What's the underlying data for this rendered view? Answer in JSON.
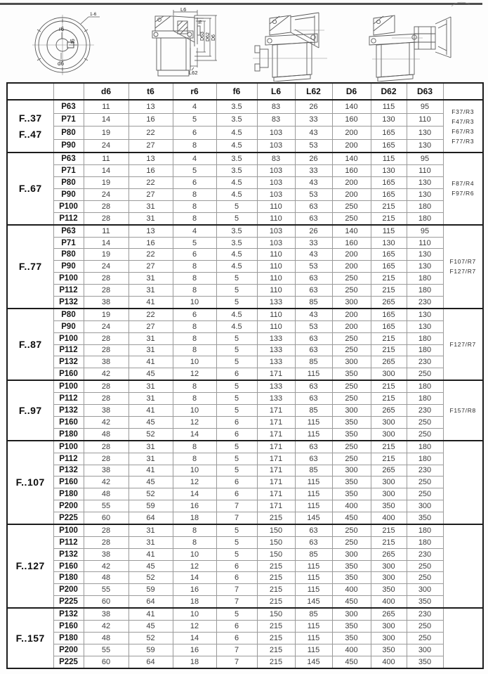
{
  "drawings": {
    "section_label": "1-6",
    "flange": {
      "r6": "r6",
      "t6": "t6",
      "d6": "d6"
    },
    "side": {
      "L6": "L6",
      "f6": "f6",
      "D63": "D63",
      "D62": "D62",
      "D6": "D6",
      "L62": "L62"
    }
  },
  "table": {
    "headers": [
      "",
      "",
      "d6",
      "t6",
      "r6",
      "f6",
      "L6",
      "L62",
      "D6",
      "D62",
      "D63",
      ""
    ],
    "groups": [
      {
        "label_lines": [
          "F..37",
          "F..47"
        ],
        "notes": [
          "F37/R3",
          "F47/R3",
          "F67/R3",
          "F77/R3"
        ],
        "rows": [
          {
            "size": "P63",
            "values": [
              "11",
              "13",
              "4",
              "3.5",
              "83",
              "26",
              "140",
              "115",
              "95"
            ]
          },
          {
            "size": "P71",
            "values": [
              "14",
              "16",
              "5",
              "3.5",
              "83",
              "33",
              "160",
              "130",
              "110"
            ]
          },
          {
            "size": "P80",
            "values": [
              "19",
              "22",
              "6",
              "4.5",
              "103",
              "43",
              "200",
              "165",
              "130"
            ]
          },
          {
            "size": "P90",
            "values": [
              "24",
              "27",
              "8",
              "4.5",
              "103",
              "53",
              "200",
              "165",
              "130"
            ]
          }
        ]
      },
      {
        "label_lines": [
          "F..67"
        ],
        "notes": [
          "F87/R4",
          "F97/R6"
        ],
        "rows": [
          {
            "size": "P63",
            "values": [
              "11",
              "13",
              "4",
              "3.5",
              "83",
              "26",
              "140",
              "115",
              "95"
            ]
          },
          {
            "size": "P71",
            "values": [
              "14",
              "16",
              "5",
              "3.5",
              "103",
              "33",
              "160",
              "130",
              "110"
            ]
          },
          {
            "size": "P80",
            "values": [
              "19",
              "22",
              "6",
              "4.5",
              "103",
              "43",
              "200",
              "165",
              "130"
            ]
          },
          {
            "size": "P90",
            "values": [
              "24",
              "27",
              "8",
              "4.5",
              "103",
              "53",
              "200",
              "165",
              "130"
            ]
          },
          {
            "size": "P100",
            "values": [
              "28",
              "31",
              "8",
              "5",
              "110",
              "63",
              "250",
              "215",
              "180"
            ]
          },
          {
            "size": "P112",
            "values": [
              "28",
              "31",
              "8",
              "5",
              "110",
              "63",
              "250",
              "215",
              "180"
            ]
          }
        ]
      },
      {
        "label_lines": [
          "F..77"
        ],
        "notes": [
          "F107/R7",
          "F127/R7"
        ],
        "rows": [
          {
            "size": "P63",
            "values": [
              "11",
              "13",
              "4",
              "3.5",
              "103",
              "26",
              "140",
              "115",
              "95"
            ]
          },
          {
            "size": "P71",
            "values": [
              "14",
              "16",
              "5",
              "3.5",
              "103",
              "33",
              "160",
              "130",
              "110"
            ]
          },
          {
            "size": "P80",
            "values": [
              "19",
              "22",
              "6",
              "4.5",
              "110",
              "43",
              "200",
              "165",
              "130"
            ]
          },
          {
            "size": "P90",
            "values": [
              "24",
              "27",
              "8",
              "4.5",
              "110",
              "53",
              "200",
              "165",
              "130"
            ]
          },
          {
            "size": "P100",
            "values": [
              "28",
              "31",
              "8",
              "5",
              "110",
              "63",
              "250",
              "215",
              "180"
            ]
          },
          {
            "size": "P112",
            "values": [
              "28",
              "31",
              "8",
              "5",
              "110",
              "63",
              "250",
              "215",
              "180"
            ]
          },
          {
            "size": "P132",
            "values": [
              "38",
              "41",
              "10",
              "5",
              "133",
              "85",
              "300",
              "265",
              "230"
            ]
          }
        ]
      },
      {
        "label_lines": [
          "F..87"
        ],
        "notes": [
          "F127/R7"
        ],
        "rows": [
          {
            "size": "P80",
            "values": [
              "19",
              "22",
              "6",
              "4.5",
              "110",
              "43",
              "200",
              "165",
              "130"
            ]
          },
          {
            "size": "P90",
            "values": [
              "24",
              "27",
              "8",
              "4.5",
              "110",
              "53",
              "200",
              "165",
              "130"
            ]
          },
          {
            "size": "P100",
            "values": [
              "28",
              "31",
              "8",
              "5",
              "133",
              "63",
              "250",
              "215",
              "180"
            ]
          },
          {
            "size": "P112",
            "values": [
              "28",
              "31",
              "8",
              "5",
              "133",
              "63",
              "250",
              "215",
              "180"
            ]
          },
          {
            "size": "P132",
            "values": [
              "38",
              "41",
              "10",
              "5",
              "133",
              "85",
              "300",
              "265",
              "230"
            ]
          },
          {
            "size": "P160",
            "values": [
              "42",
              "45",
              "12",
              "6",
              "171",
              "115",
              "350",
              "300",
              "250"
            ]
          }
        ]
      },
      {
        "label_lines": [
          "F..97"
        ],
        "notes": [
          "F157/R8"
        ],
        "rows": [
          {
            "size": "P100",
            "values": [
              "28",
              "31",
              "8",
              "5",
              "133",
              "63",
              "250",
              "215",
              "180"
            ]
          },
          {
            "size": "P112",
            "values": [
              "28",
              "31",
              "8",
              "5",
              "133",
              "63",
              "250",
              "215",
              "180"
            ]
          },
          {
            "size": "P132",
            "values": [
              "38",
              "41",
              "10",
              "5",
              "171",
              "85",
              "300",
              "265",
              "230"
            ]
          },
          {
            "size": "P160",
            "values": [
              "42",
              "45",
              "12",
              "6",
              "171",
              "115",
              "350",
              "300",
              "250"
            ]
          },
          {
            "size": "P180",
            "values": [
              "48",
              "52",
              "14",
              "6",
              "171",
              "115",
              "350",
              "300",
              "250"
            ]
          }
        ]
      },
      {
        "label_lines": [
          "F..107"
        ],
        "notes": [],
        "rows": [
          {
            "size": "P100",
            "values": [
              "28",
              "31",
              "8",
              "5",
              "171",
              "63",
              "250",
              "215",
              "180"
            ]
          },
          {
            "size": "P112",
            "values": [
              "28",
              "31",
              "8",
              "5",
              "171",
              "63",
              "250",
              "215",
              "180"
            ]
          },
          {
            "size": "P132",
            "values": [
              "38",
              "41",
              "10",
              "5",
              "171",
              "85",
              "300",
              "265",
              "230"
            ]
          },
          {
            "size": "P160",
            "values": [
              "42",
              "45",
              "12",
              "6",
              "171",
              "115",
              "350",
              "300",
              "250"
            ]
          },
          {
            "size": "P180",
            "values": [
              "48",
              "52",
              "14",
              "6",
              "171",
              "115",
              "350",
              "300",
              "250"
            ]
          },
          {
            "size": "P200",
            "values": [
              "55",
              "59",
              "16",
              "7",
              "171",
              "115",
              "400",
              "350",
              "300"
            ]
          },
          {
            "size": "P225",
            "values": [
              "60",
              "64",
              "18",
              "7",
              "215",
              "145",
              "450",
              "400",
              "350"
            ]
          }
        ]
      },
      {
        "label_lines": [
          "F..127"
        ],
        "notes": [],
        "rows": [
          {
            "size": "P100",
            "values": [
              "28",
              "31",
              "8",
              "5",
              "150",
              "63",
              "250",
              "215",
              "180"
            ]
          },
          {
            "size": "P112",
            "values": [
              "28",
              "31",
              "8",
              "5",
              "150",
              "63",
              "250",
              "215",
              "180"
            ]
          },
          {
            "size": "P132",
            "values": [
              "38",
              "41",
              "10",
              "5",
              "150",
              "85",
              "300",
              "265",
              "230"
            ]
          },
          {
            "size": "P160",
            "values": [
              "42",
              "45",
              "12",
              "6",
              "215",
              "115",
              "350",
              "300",
              "250"
            ]
          },
          {
            "size": "P180",
            "values": [
              "48",
              "52",
              "14",
              "6",
              "215",
              "115",
              "350",
              "300",
              "250"
            ]
          },
          {
            "size": "P200",
            "values": [
              "55",
              "59",
              "16",
              "7",
              "215",
              "115",
              "400",
              "350",
              "300"
            ]
          },
          {
            "size": "P225",
            "values": [
              "60",
              "64",
              "18",
              "7",
              "215",
              "145",
              "450",
              "400",
              "350"
            ]
          }
        ]
      },
      {
        "label_lines": [
          "F..157"
        ],
        "notes": [],
        "rows": [
          {
            "size": "P132",
            "values": [
              "38",
              "41",
              "10",
              "5",
              "150",
              "85",
              "300",
              "265",
              "230"
            ]
          },
          {
            "size": "P160",
            "values": [
              "42",
              "45",
              "12",
              "6",
              "215",
              "115",
              "350",
              "300",
              "250"
            ]
          },
          {
            "size": "P180",
            "values": [
              "48",
              "52",
              "14",
              "6",
              "215",
              "115",
              "350",
              "300",
              "250"
            ]
          },
          {
            "size": "P200",
            "values": [
              "55",
              "59",
              "16",
              "7",
              "215",
              "115",
              "400",
              "350",
              "300"
            ]
          },
          {
            "size": "P225",
            "values": [
              "60",
              "64",
              "18",
              "7",
              "215",
              "145",
              "450",
              "400",
              "350"
            ]
          }
        ]
      }
    ]
  }
}
